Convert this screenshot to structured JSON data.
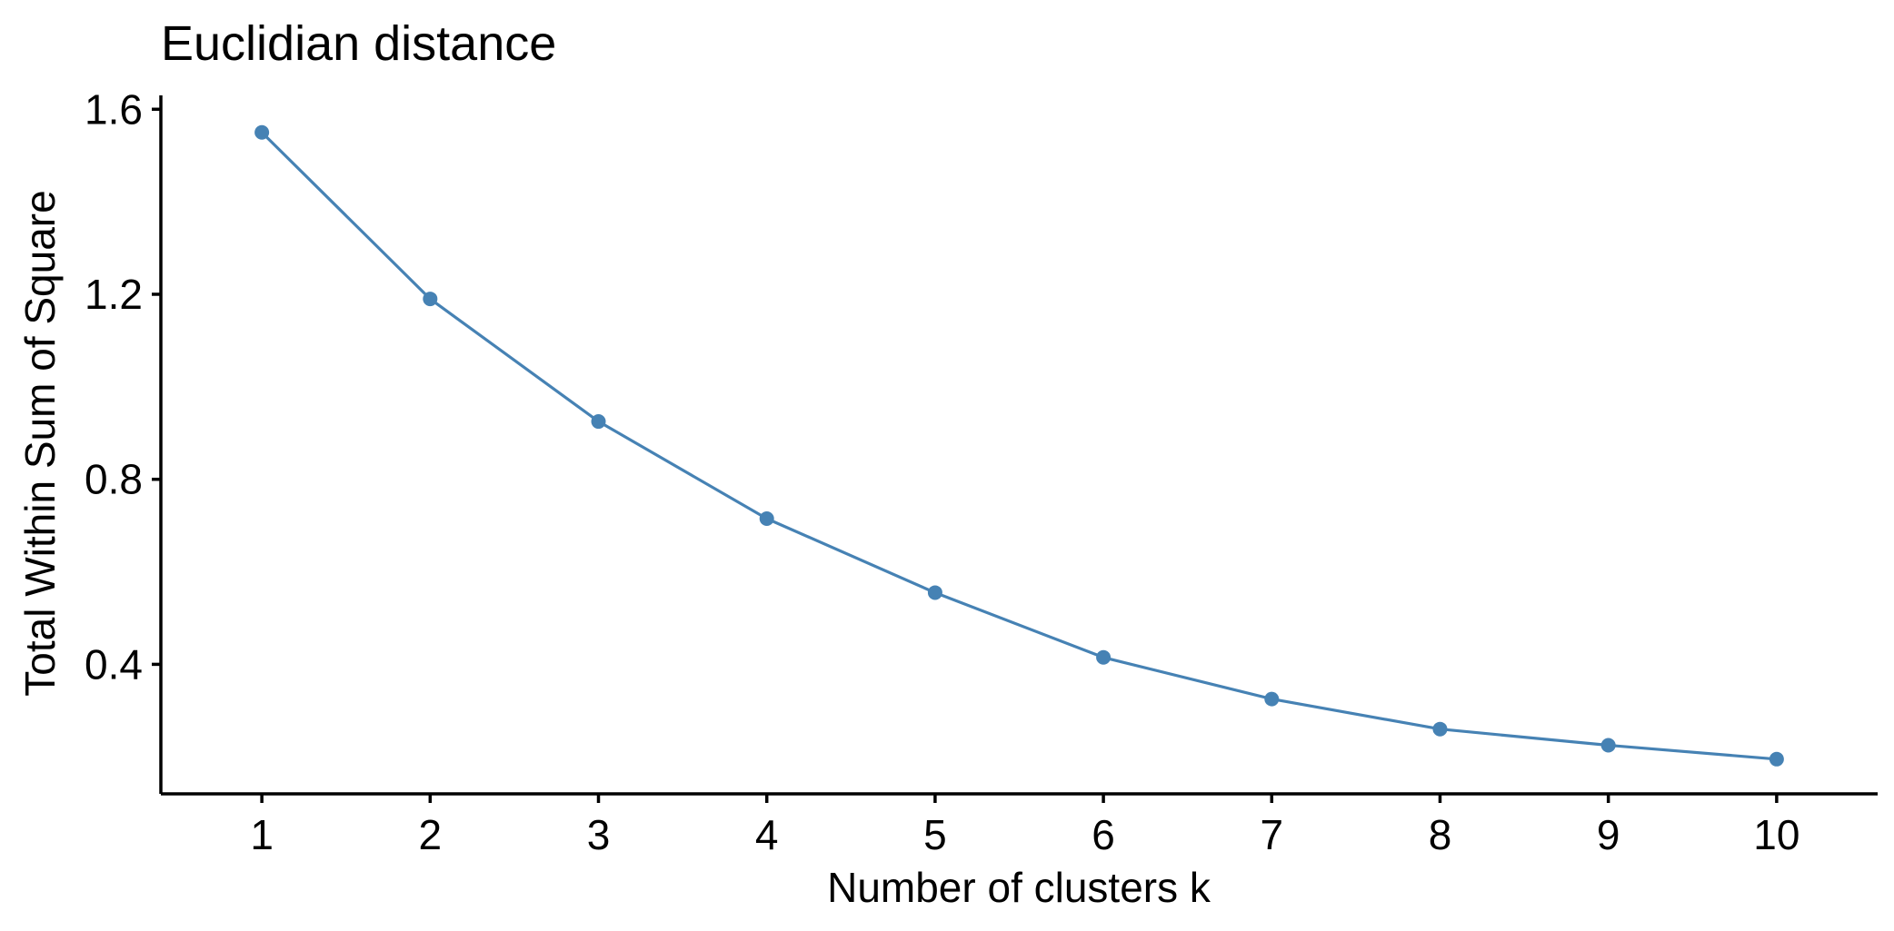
{
  "chart_data": {
    "type": "line",
    "title": "Euclidian distance",
    "xlabel": "Number of clusters k",
    "ylabel": "Total Within Sum of Square",
    "x": [
      1,
      2,
      3,
      4,
      5,
      6,
      7,
      8,
      9,
      10
    ],
    "x_ticks": [
      "1",
      "2",
      "3",
      "4",
      "5",
      "6",
      "7",
      "8",
      "9",
      "10"
    ],
    "xlim": [
      0.4,
      10.6
    ],
    "y_ticks": [
      0.4,
      0.8,
      1.2,
      1.6
    ],
    "y_tick_labels": [
      "0.4",
      "0.8",
      "1.2",
      "1.6"
    ],
    "ylim": [
      0.12,
      1.63
    ],
    "grid": false,
    "legend": "none",
    "series": [
      {
        "values": [
          1.55,
          1.19,
          0.925,
          0.715,
          0.555,
          0.415,
          0.325,
          0.26,
          0.225,
          0.195
        ],
        "color": "#4682B4"
      }
    ]
  }
}
